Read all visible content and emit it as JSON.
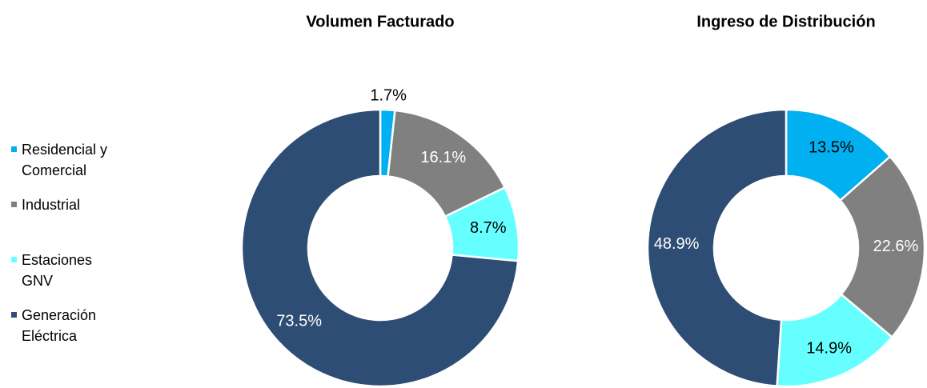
{
  "chart_data": [
    {
      "type": "pie",
      "title": "Volumen Facturado",
      "categories": [
        "Residencial y Comercial",
        "Industrial",
        "Estaciones GNV",
        "Generación Eléctrica"
      ],
      "values": [
        1.7,
        16.1,
        8.7,
        73.5
      ],
      "value_labels": [
        "1.7%",
        "16.1%",
        "8.7%",
        "73.5%"
      ],
      "colors": [
        "#00b0f0",
        "#808080",
        "#66ffff",
        "#2e4d74"
      ]
    },
    {
      "type": "pie",
      "title": "Ingreso de Distribución",
      "values": [
        13.5,
        22.6,
        14.9,
        48.9
      ],
      "value_labels": [
        "13.5%",
        "22.6%",
        "14.9%",
        "48.9%"
      ],
      "colors": [
        "#00b0f0",
        "#808080",
        "#66ffff",
        "#2e4d74"
      ]
    }
  ]
}
